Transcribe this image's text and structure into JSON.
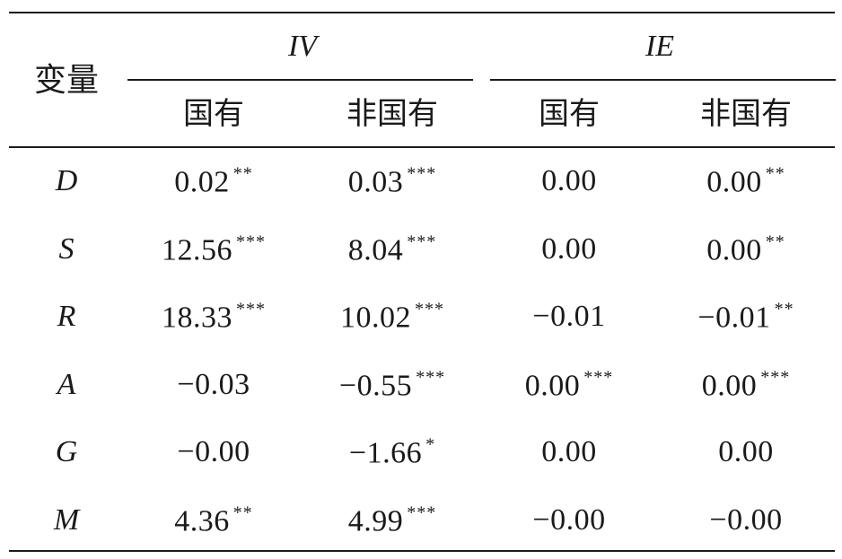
{
  "table": {
    "var_header": "变量",
    "groups": [
      "IV",
      "IE"
    ],
    "subheaders": [
      "国有",
      "非国有",
      "国有",
      "非国有"
    ],
    "rows": [
      {
        "var": "D",
        "cells": [
          {
            "v": "0.02",
            "s": "**"
          },
          {
            "v": "0.03",
            "s": "***"
          },
          {
            "v": "0.00",
            "s": ""
          },
          {
            "v": "0.00",
            "s": "**"
          }
        ]
      },
      {
        "var": "S",
        "cells": [
          {
            "v": "12.56",
            "s": "***"
          },
          {
            "v": "8.04",
            "s": "***"
          },
          {
            "v": "0.00",
            "s": ""
          },
          {
            "v": "0.00",
            "s": "**"
          }
        ]
      },
      {
        "var": "R",
        "cells": [
          {
            "v": "18.33",
            "s": "***"
          },
          {
            "v": "10.02",
            "s": "***"
          },
          {
            "v": "−0.01",
            "s": ""
          },
          {
            "v": "−0.01",
            "s": "**"
          }
        ]
      },
      {
        "var": "A",
        "cells": [
          {
            "v": "−0.03",
            "s": ""
          },
          {
            "v": "−0.55",
            "s": "***"
          },
          {
            "v": "0.00",
            "s": "***"
          },
          {
            "v": "0.00",
            "s": "***"
          }
        ]
      },
      {
        "var": "G",
        "cells": [
          {
            "v": "−0.00",
            "s": ""
          },
          {
            "v": "−1.66",
            "s": "*"
          },
          {
            "v": "0.00",
            "s": ""
          },
          {
            "v": "0.00",
            "s": ""
          }
        ]
      },
      {
        "var": "M",
        "cells": [
          {
            "v": "4.36",
            "s": "**"
          },
          {
            "v": "4.99",
            "s": "***"
          },
          {
            "v": "−0.00",
            "s": ""
          },
          {
            "v": "−0.00",
            "s": ""
          }
        ]
      }
    ]
  }
}
